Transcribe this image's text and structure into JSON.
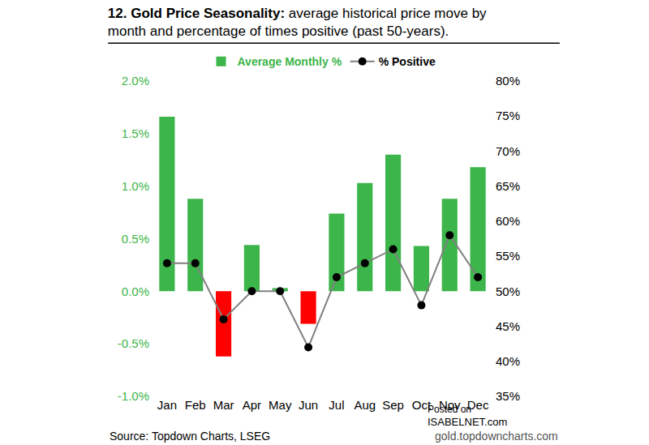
{
  "chart_data": {
    "type": "bar",
    "title": "12. Gold Price Seasonality:",
    "subtitle": "average historical price move by month and percentage of times positive (past 50-years).",
    "categories": [
      "Jan",
      "Feb",
      "Mar",
      "Apr",
      "May",
      "Jun",
      "Jul",
      "Aug",
      "Sep",
      "Oct",
      "Nov",
      "Dec"
    ],
    "series": [
      {
        "name": "Average Monthly %",
        "type": "bar",
        "color": "#3cb54a",
        "colors": [
          "#3cb54a",
          "#3cb54a",
          "#ff0000",
          "#3cb54a",
          "#3cb54a",
          "#ff0000",
          "#3cb54a",
          "#3cb54a",
          "#3cb54a",
          "#3cb54a",
          "#3cb54a",
          "#3cb54a"
        ],
        "values": [
          1.66,
          0.88,
          -0.62,
          0.44,
          0.03,
          -0.31,
          0.74,
          1.03,
          1.3,
          0.43,
          0.88,
          1.18
        ]
      },
      {
        "name": "% Positive",
        "type": "line",
        "axis": "y2",
        "color": "#808080",
        "marker": "circle",
        "values": [
          54,
          54,
          46,
          50,
          50,
          42,
          52,
          54,
          56,
          48,
          58,
          52
        ]
      }
    ],
    "ylim": [
      -1,
      2
    ],
    "yticks": [
      {
        "value": -1,
        "label": "-1.0%"
      },
      {
        "value": -0.5,
        "label": "-0.5%"
      },
      {
        "value": 0,
        "label": "0.0%"
      },
      {
        "value": 0.5,
        "label": "0.5%"
      },
      {
        "value": 1,
        "label": "1.0%"
      },
      {
        "value": 1.5,
        "label": "1.5%"
      },
      {
        "value": 2,
        "label": "2.0%"
      }
    ],
    "y2lim": [
      35,
      80
    ],
    "y2ticks": [
      {
        "value": 35,
        "label": "35%"
      },
      {
        "value": 40,
        "label": "40%"
      },
      {
        "value": 45,
        "label": "45%"
      },
      {
        "value": 50,
        "label": "50%"
      },
      {
        "value": 55,
        "label": "55%"
      },
      {
        "value": 60,
        "label": "60%"
      },
      {
        "value": 65,
        "label": "65%"
      },
      {
        "value": 70,
        "label": "70%"
      },
      {
        "value": 75,
        "label": "75%"
      },
      {
        "value": 80,
        "label": "80%"
      }
    ],
    "grid": false,
    "legend": "top",
    "annotations": [
      "Source: Topdown Charts, LSEG",
      "gold.topdowncharts.com",
      "Posted on",
      "ISABELNET.com"
    ]
  }
}
